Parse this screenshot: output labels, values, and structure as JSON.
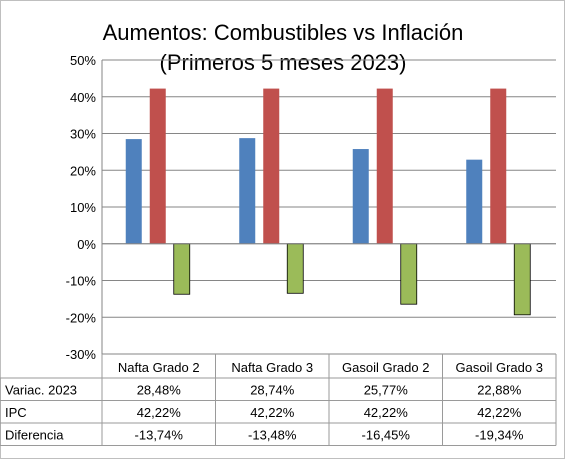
{
  "chart_data": {
    "type": "bar",
    "title_lines": [
      "Aumentos: Combustibles vs Inflación",
      "(Primeros 5 meses 2023)"
    ],
    "categories": [
      "Nafta Grado 2",
      "Nafta Grado 3",
      "Gasoil Grado 2",
      "Gasoil Grado 3"
    ],
    "series": [
      {
        "name": "Variac. 2023",
        "values": [
          28.48,
          28.74,
          25.77,
          22.88
        ],
        "labels": [
          "28,48%",
          "28,74%",
          "25,77%",
          "22,88%"
        ],
        "color": "#4f81bd"
      },
      {
        "name": "IPC",
        "values": [
          42.22,
          42.22,
          42.22,
          42.22
        ],
        "labels": [
          "42,22%",
          "42,22%",
          "42,22%",
          "42,22%"
        ],
        "color": "#c0504d"
      },
      {
        "name": "Diferencia",
        "values": [
          -13.74,
          -13.48,
          -16.45,
          -19.34
        ],
        "labels": [
          "-13,74%",
          "-13,48%",
          "-16,45%",
          "-19,34%"
        ],
        "color": "#9bbb59"
      }
    ],
    "ylim": [
      -30,
      50
    ],
    "yticks": [
      50,
      40,
      30,
      20,
      10,
      0,
      -10,
      -20,
      -30
    ],
    "ytick_labels": [
      "50%",
      "40%",
      "30%",
      "20%",
      "10%",
      "0%",
      "-10%",
      "-20%",
      "-30%"
    ],
    "grid": true,
    "legend": "data-table"
  }
}
